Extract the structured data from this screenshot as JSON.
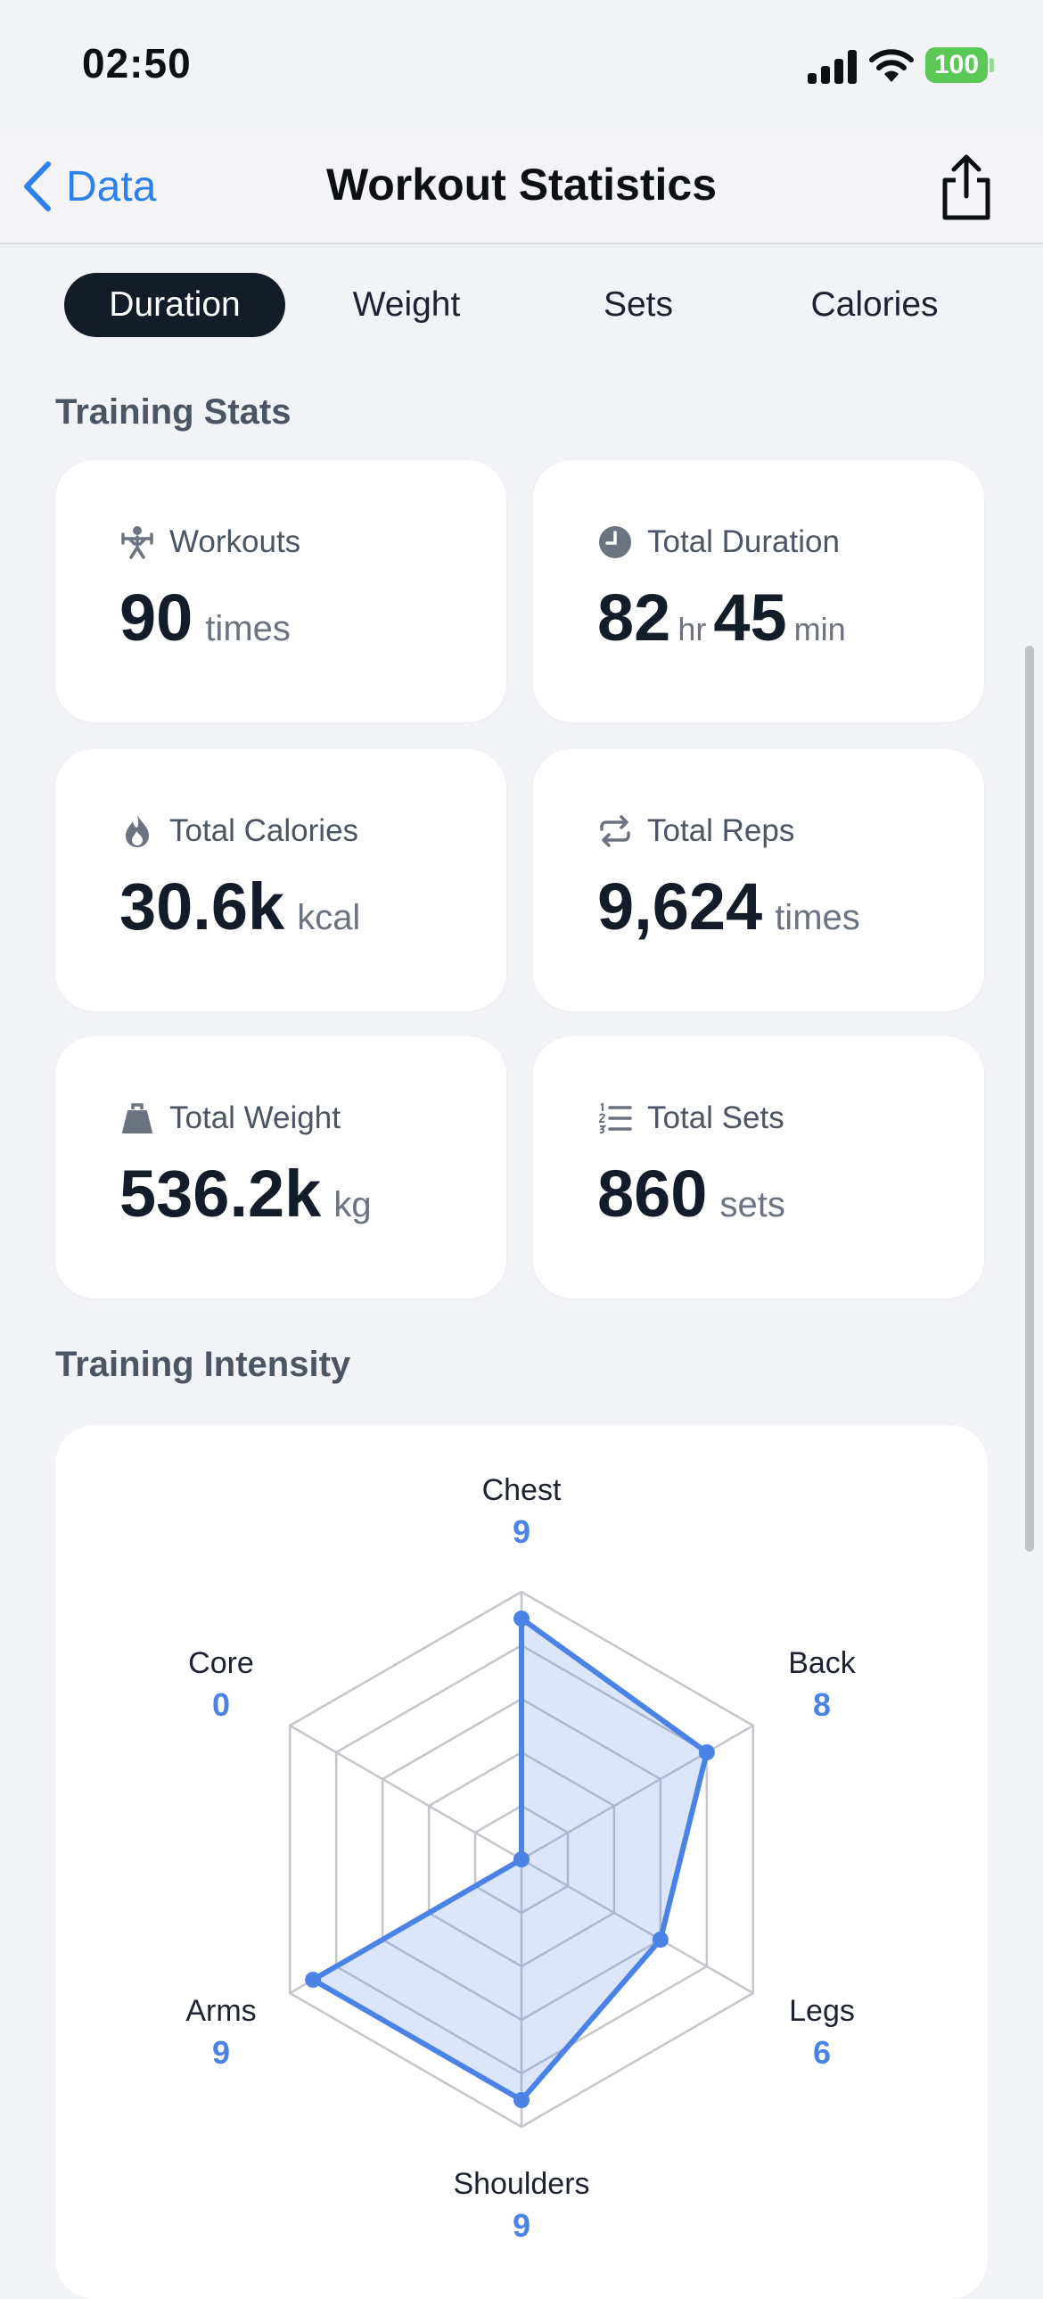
{
  "status_bar": {
    "time": "02:50",
    "battery": "100"
  },
  "nav": {
    "back_label": "Data",
    "title": "Workout Statistics"
  },
  "tabs": [
    {
      "label": "Duration",
      "active": true
    },
    {
      "label": "Weight",
      "active": false
    },
    {
      "label": "Sets",
      "active": false
    },
    {
      "label": "Calories",
      "active": false
    }
  ],
  "training_stats": {
    "title": "Training Stats",
    "workouts": {
      "label": "Workouts",
      "value": "90",
      "unit": "times",
      "icon": "weightlifter-icon"
    },
    "total_duration": {
      "label": "Total Duration",
      "hours": "82",
      "hours_unit": "hr",
      "minutes": "45",
      "minutes_unit": "min",
      "icon": "clock-icon"
    },
    "total_calories": {
      "label": "Total Calories",
      "value": "30.6k",
      "unit": "kcal",
      "icon": "flame-icon"
    },
    "total_reps": {
      "label": "Total Reps",
      "value": "9,624",
      "unit": "times",
      "icon": "repeat-icon"
    },
    "total_weight": {
      "label": "Total Weight",
      "value": "536.2k",
      "unit": "kg",
      "icon": "kettlebell-icon"
    },
    "total_sets": {
      "label": "Total Sets",
      "value": "860",
      "unit": "sets",
      "icon": "numbered-list-icon"
    }
  },
  "training_intensity": {
    "title": "Training Intensity"
  },
  "colors": {
    "accent": "#4a82e6",
    "tab_active_bg": "#141b29",
    "link": "#2f80ed",
    "battery": "#5cc956"
  },
  "chart_data": {
    "type": "radar",
    "axes": [
      "Chest",
      "Back",
      "Legs",
      "Shoulders",
      "Arms",
      "Core"
    ],
    "values": [
      9,
      8,
      6,
      9,
      9,
      0
    ],
    "value_labels": [
      "9",
      "8",
      "6",
      "9",
      "9",
      "0"
    ],
    "range": [
      0,
      10
    ],
    "rings": 5,
    "grid": true
  }
}
